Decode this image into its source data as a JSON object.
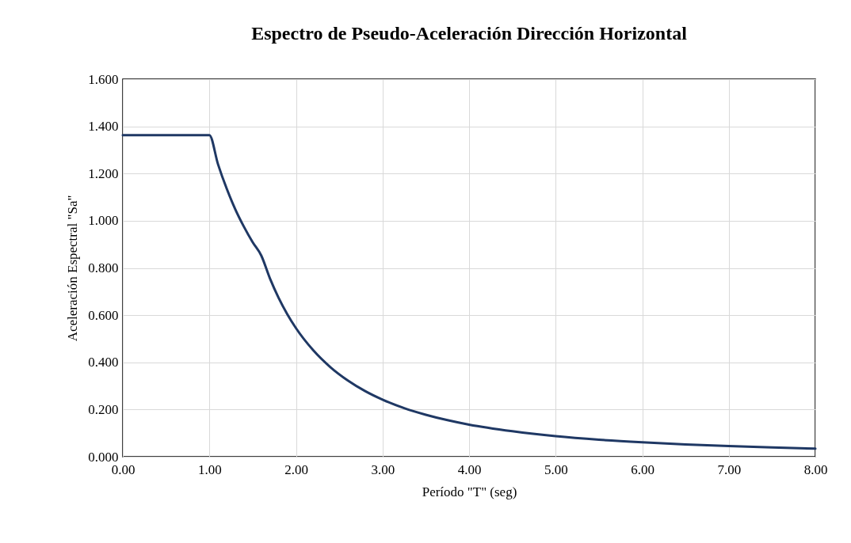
{
  "chart_data": {
    "type": "line",
    "title": "Espectro de Pseudo-Aceleración Dirección Horizontal",
    "xlabel": "Período \"T\" (seg)",
    "ylabel": "Aceleración Espectral \"Sa\"",
    "x": [
      0,
      0.2,
      0.4,
      0.6,
      0.8,
      0.9,
      1.0,
      1.1,
      1.2,
      1.3,
      1.4,
      1.5,
      1.6,
      1.7,
      1.8,
      1.9,
      2.0,
      2.2,
      2.4,
      2.6,
      2.8,
      3.0,
      3.25,
      3.5,
      3.75,
      4.0,
      4.5,
      5.0,
      5.5,
      6.0,
      6.5,
      7.0,
      7.5,
      8.0
    ],
    "series": [
      {
        "color": "#1f3864",
        "values": [
          1.363,
          1.363,
          1.363,
          1.363,
          1.363,
          1.363,
          1.363,
          1.239,
          1.136,
          1.048,
          0.974,
          0.909,
          0.852,
          0.755,
          0.673,
          0.604,
          0.545,
          0.451,
          0.379,
          0.323,
          0.278,
          0.242,
          0.206,
          0.178,
          0.155,
          0.136,
          0.108,
          0.087,
          0.072,
          0.061,
          0.052,
          0.045,
          0.039,
          0.034
        ]
      }
    ],
    "xlim": [
      0,
      8
    ],
    "xticks": [
      {
        "value": 0,
        "label": "0.00"
      },
      {
        "value": 1,
        "label": "1.00"
      },
      {
        "value": 2,
        "label": "2.00"
      },
      {
        "value": 3,
        "label": "3.00"
      },
      {
        "value": 4,
        "label": "4.00"
      },
      {
        "value": 5,
        "label": "5.00"
      },
      {
        "value": 6,
        "label": "6.00"
      },
      {
        "value": 7,
        "label": "7.00"
      },
      {
        "value": 8,
        "label": "8.00"
      }
    ],
    "ylim": [
      0,
      1.6
    ],
    "yticks": [
      {
        "value": 0,
        "label": "0.000"
      },
      {
        "value": 0.2,
        "label": "0.200"
      },
      {
        "value": 0.4,
        "label": "0.400"
      },
      {
        "value": 0.6,
        "label": "0.600"
      },
      {
        "value": 0.8,
        "label": "0.800"
      },
      {
        "value": 1.0,
        "label": "1.000"
      },
      {
        "value": 1.2,
        "label": "1.200"
      },
      {
        "value": 1.4,
        "label": "1.400"
      },
      {
        "value": 1.6,
        "label": "1.600"
      }
    ],
    "grid": true,
    "line_style": "solid",
    "marker": "none"
  }
}
